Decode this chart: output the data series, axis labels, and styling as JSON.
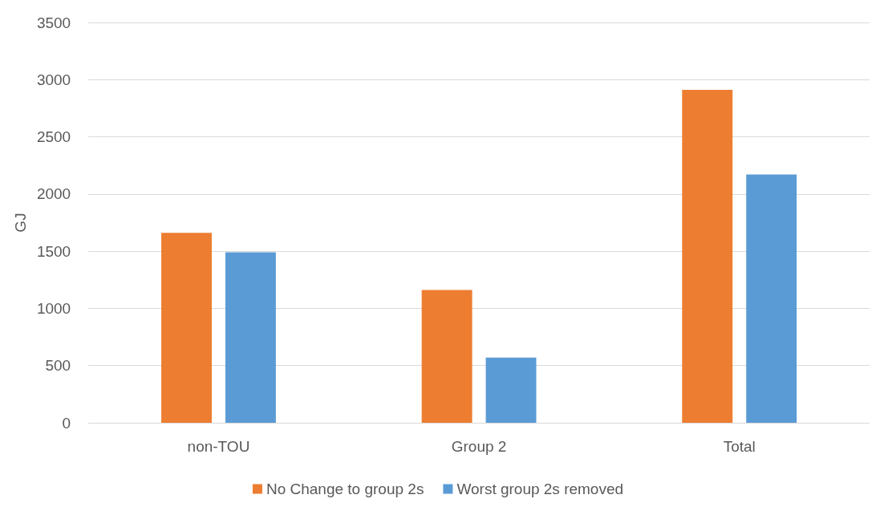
{
  "chart_data": {
    "type": "bar",
    "ylabel": "GJ",
    "categories": [
      "non-TOU",
      "Group 2",
      "Total"
    ],
    "series": [
      {
        "name": "No Change to group 2s",
        "color": "#ed7d31",
        "values": [
          1660,
          1160,
          2910
        ]
      },
      {
        "name": "Worst group 2s removed",
        "color": "#5b9bd5",
        "values": [
          1490,
          570,
          2170
        ]
      }
    ],
    "ylim": [
      0,
      3500
    ],
    "yticks": [
      0,
      500,
      1000,
      1500,
      2000,
      2500,
      3000,
      3500
    ],
    "grid": "y",
    "legend": "bottom"
  }
}
